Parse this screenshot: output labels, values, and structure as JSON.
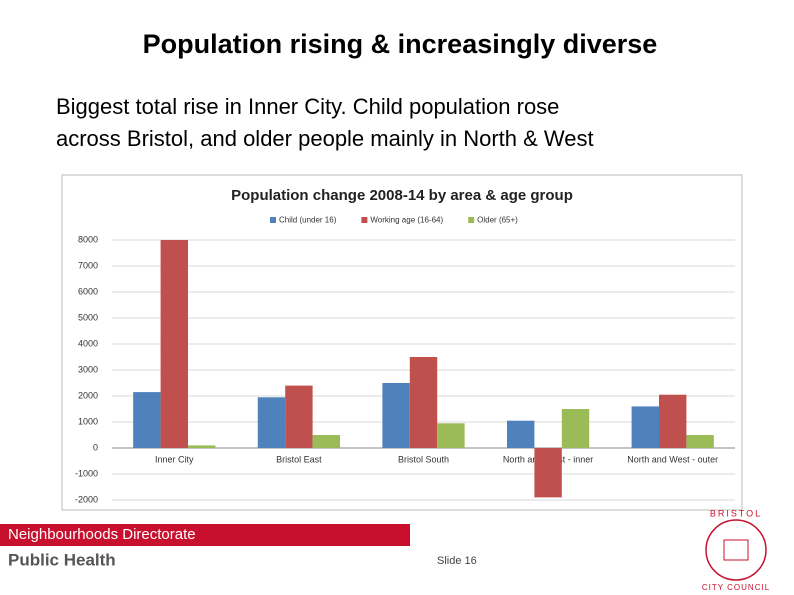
{
  "slide": {
    "title": "Population rising & increasingly diverse",
    "subtitle_lines": [
      "Biggest total rise in Inner City. Child population rose",
      "across Bristol, and older people mainly in North & West"
    ],
    "footer_banner": "Neighbourhoods Directorate",
    "footer_brand": "Public Health",
    "slide_number": "Slide 16",
    "logo_top": "BRISTOL",
    "logo_bottom": "CITY COUNCIL"
  },
  "chart_data": {
    "type": "bar",
    "title": "Population change 2008-14 by area & age group",
    "categories": [
      "Inner City",
      "Bristol East",
      "Bristol South",
      "North and West - inner",
      "North and West - outer"
    ],
    "series": [
      {
        "name": "Child (under 16)",
        "color": "#4f81bd",
        "values": [
          2150,
          1950,
          2500,
          1050,
          1600
        ]
      },
      {
        "name": "Working age (16-64)",
        "color": "#c0504d",
        "values": [
          8000,
          2400,
          3500,
          -1900,
          2050
        ]
      },
      {
        "name": "Older (65+)",
        "color": "#9bbb59",
        "values": [
          100,
          500,
          950,
          1500,
          500
        ]
      }
    ],
    "ylim": [
      -2000,
      8000
    ],
    "yticks": [
      8000,
      7000,
      6000,
      5000,
      4000,
      3000,
      2000,
      1000,
      0,
      {
        "value": -1000,
        "label": "-1000"
      },
      {
        "value": -2000,
        "label": "-2000"
      }
    ],
    "grid": true,
    "legend": "top"
  }
}
